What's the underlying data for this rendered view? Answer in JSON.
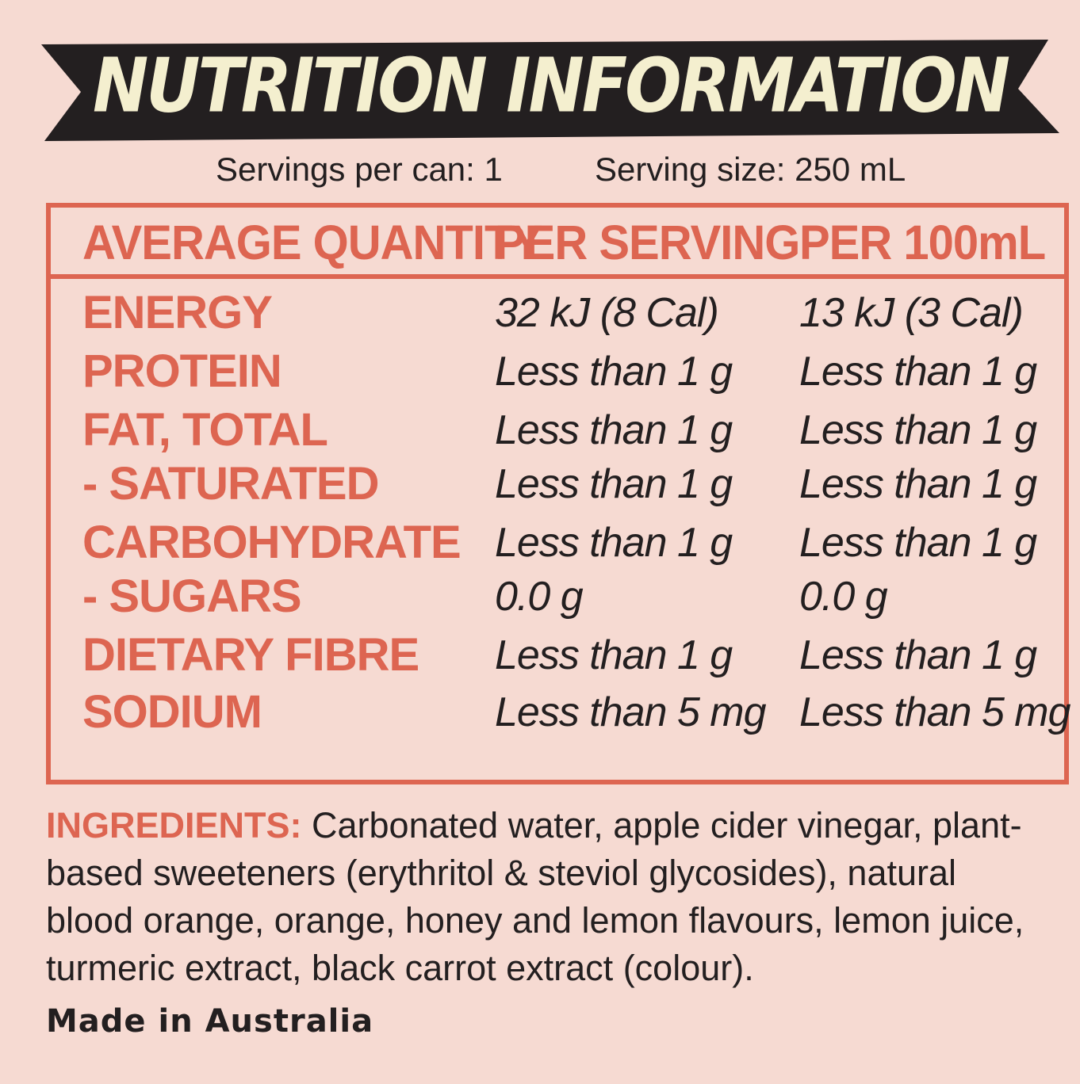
{
  "title": "NUTRITION INFORMATION",
  "servings": {
    "per_can": "Servings per can: 1",
    "size": "Serving size: 250 mL"
  },
  "table": {
    "headers": [
      "AVERAGE QUANTITY",
      "PER SERVING",
      "PER 100mL"
    ],
    "rows": [
      {
        "name": "ENERGY",
        "per_serving": "32 kJ (8 Cal)",
        "per_100ml": "13 kJ (3 Cal)"
      },
      {
        "name": "PROTEIN",
        "per_serving": "Less than 1 g",
        "per_100ml": "Less than 1 g"
      },
      {
        "name": "FAT, TOTAL",
        "per_serving": "Less than 1 g",
        "per_100ml": "Less than 1 g"
      },
      {
        "name": "- SATURATED",
        "per_serving": "Less than 1 g",
        "per_100ml": "Less than 1 g"
      },
      {
        "name": "CARBOHYDRATE",
        "per_serving": "Less than 1 g",
        "per_100ml": "Less than 1 g"
      },
      {
        "name": "- SUGARS",
        "per_serving": "0.0 g",
        "per_100ml": "0.0 g"
      },
      {
        "name": "DIETARY FIBRE",
        "per_serving": "Less than 1 g",
        "per_100ml": "Less than 1 g"
      },
      {
        "name": "SODIUM",
        "per_serving": "Less than 5 mg",
        "per_100ml": "Less than 5 mg"
      }
    ]
  },
  "ingredients": {
    "label": "INGREDIENTS:",
    "text": " Carbonated water, apple cider vinegar, plant-based sweeteners (erythritol & steviol glycosides), natural blood orange, orange, honey and lemon flavours, lemon juice, turmeric extract, black carrot extract (colour)."
  },
  "origin": "Made in Australia",
  "colors": {
    "background": "#f6dad2",
    "accent": "#dd6551",
    "banner": "#231f20",
    "banner_text": "#f4efcf"
  }
}
